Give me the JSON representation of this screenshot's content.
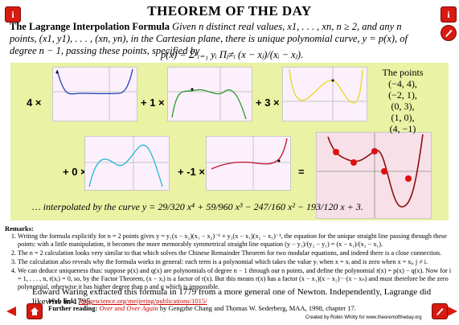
{
  "title": "THEOREM OF THE DAY",
  "buttons": {
    "left_icon": "i",
    "right_icon": "i"
  },
  "statement": {
    "name": "The Lagrange Interpolation Formula",
    "text": "Given n distinct real values, x1, . . . , xn, n ≥ 2, and any n points, (x1, y1), . . . , (xn, yn), in the Cartesian plane, there is unique polynomial curve, y = p(x), of degree n − 1, passing these points, specified by"
  },
  "formula": "p(x) = Σⁿᵢ₌₁ yᵢ Πⱼ≠ᵢ (x − xⱼ)/(xᵢ − xⱼ).",
  "coefficients": [
    "4 ×",
    "+ 1 ×",
    "+ 3 ×",
    "+ 0 ×",
    "+ -1 ×",
    "="
  ],
  "points": {
    "heading": "The points",
    "items": [
      "(−4, 4),",
      "(−2, 1),",
      "(0, 3),",
      "(1, 0),",
      "(4, −1)"
    ]
  },
  "interp": "… interpolated by the curve y = 29/320 x⁴ + 59/960 x³ − 247/160 x² − 193/120 x + 3.",
  "remarks": {
    "title": "Remarks:",
    "items": [
      "Writing the formula explicitly for n = 2 points gives y = y₁(x − x₂)(x₁ − x₂)⁻¹ + y₂(x − x₁)(x₂ − x₁)⁻¹, the equation for the unique straight line passing through these points: with a little manipulation, it becomes the more memorably symmetrical straight line equation (y − y₁)/(y₂ − y₁) = (x − x₁)/(x₂ − x₁).",
      "The n = 2 calculation looks very similar to that which solves the Chinese Remainder Theorem for two modular equations, and indeed there is a close connection.",
      "The calculation also reveals why the formula works in general: each term is a polynomial which takes the value yᵢ when x = xᵢ and is zero when x = xⱼ, j ≠ i.",
      "We can deduce uniqueness thus: suppose p(x) and q(x) are polynomials of degree n − 1 through our n points, and define the polynomial r(x) = p(x) − q(x). Now for i = 1, . . . , n, r(xᵢ) = 0, so, by the Factor Theorem, (x − xᵢ) is a factor of r(x). But this means r(x) has a factor (x − x₁)(x − x₂)···(x − xₙ) and must therefore be the zero polynomial, otherwise it has higher degree than p and q which is impossible."
    ]
  },
  "footer": "Edward Waring extracted this formula in 1779 from a more general one of Newton. Independently, Lagrange did likewise in 1795.",
  "weblink": {
    "label": "Web link:",
    "url": "imagescience.org/meijering/publications/1015/"
  },
  "further": {
    "label": "Further reading:",
    "book": "Over and Over Again",
    "rest": "by Gengzhe Chang and Thomas W. Sederberg, MAA, 1998, chapter 17."
  },
  "credit": "Created by Robin Whitty for www.theoremoftheday.org",
  "colors": {
    "panel": "#eaf2a4",
    "red": "#d81a10",
    "blue": "#1f3fb5",
    "green": "#2d9a2d",
    "yellow": "#e8d81c",
    "cyan": "#22b8d8",
    "crimson": "#c0102a",
    "darkred": "#8b1010"
  }
}
